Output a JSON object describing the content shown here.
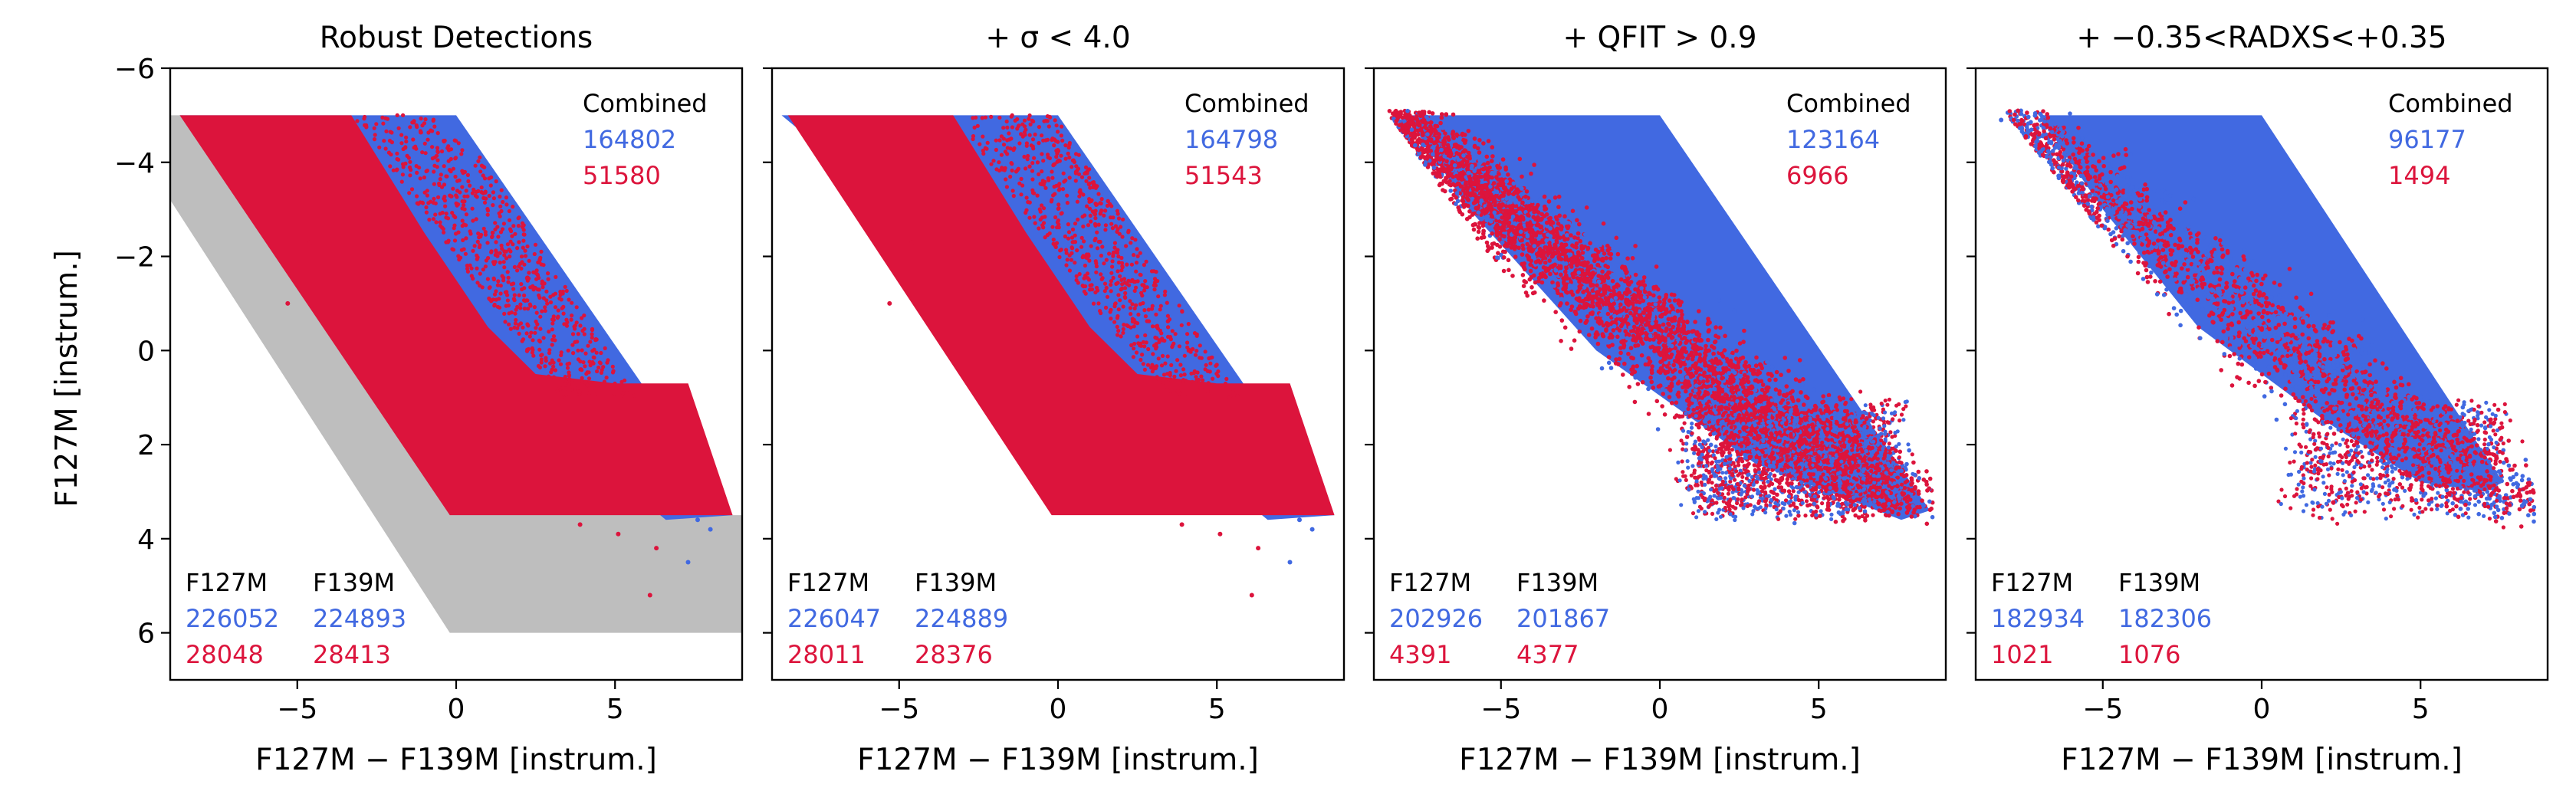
{
  "figure": {
    "ylabel": "F127M [instrum.]",
    "colors": {
      "combined": "#4169e1",
      "separate": "#dc143c",
      "all": "#b3b3b3",
      "text": "#000000"
    },
    "combined_label": "Combined",
    "filter_a": "F127M",
    "filter_b": "F139M"
  },
  "chart_data": [
    {
      "type": "scatter",
      "title": "Robust Detections",
      "xlabel": "F127M − F139M [instrum.]",
      "ylabel": "F127M [instrum.]",
      "xlim": [
        -9,
        9
      ],
      "ylim": [
        7,
        -6
      ],
      "xticks": [
        -5,
        0,
        5
      ],
      "xtick_labels": [
        "−5",
        "0",
        "5"
      ],
      "yticks": [
        -6,
        -4,
        -2,
        0,
        2,
        4,
        6
      ],
      "ytick_labels": [
        "−6",
        "−4",
        "−2",
        "0",
        "2",
        "4",
        "6"
      ],
      "counts": {
        "combined": "164802",
        "combined_red": "51580",
        "f127m_blue": "226052",
        "f127m_red": "28048",
        "f139m_blue": "224893",
        "f139m_red": "28413"
      },
      "cut": "none"
    },
    {
      "type": "scatter",
      "title": "+ σ < 4.0",
      "xlabel": "F127M − F139M [instrum.]",
      "xlim": [
        -9,
        9
      ],
      "ylim": [
        7,
        -6
      ],
      "xticks": [
        -5,
        0,
        5
      ],
      "xtick_labels": [
        "−5",
        "0",
        "5"
      ],
      "counts": {
        "combined": "164798",
        "combined_red": "51543",
        "f127m_blue": "226047",
        "f127m_red": "28011",
        "f139m_blue": "224889",
        "f139m_red": "28376"
      },
      "cut": "sigma"
    },
    {
      "type": "scatter",
      "title": "+ QFIT > 0.9",
      "xlabel": "F127M − F139M [instrum.]",
      "xlim": [
        -9,
        9
      ],
      "ylim": [
        7,
        -6
      ],
      "xticks": [
        -5,
        0,
        5
      ],
      "xtick_labels": [
        "−5",
        "0",
        "5"
      ],
      "counts": {
        "combined": "123164",
        "combined_red": "6966",
        "f127m_blue": "202926",
        "f127m_red": "4391",
        "f139m_blue": "201867",
        "f139m_red": "4377"
      },
      "cut": "qfit"
    },
    {
      "type": "scatter",
      "title": "+ −0.35<RADXS<+0.35",
      "xlabel": "F127M − F139M [instrum.]",
      "xlim": [
        -9,
        9
      ],
      "ylim": [
        7,
        -6
      ],
      "xticks": [
        -5,
        0,
        5
      ],
      "xtick_labels": [
        "−5",
        "0",
        "5"
      ],
      "counts": {
        "combined": "96177",
        "combined_red": "1494",
        "f127m_blue": "182934",
        "f127m_red": "1021",
        "f139m_blue": "182306",
        "f139m_red": "1076"
      },
      "cut": "radxs"
    }
  ]
}
